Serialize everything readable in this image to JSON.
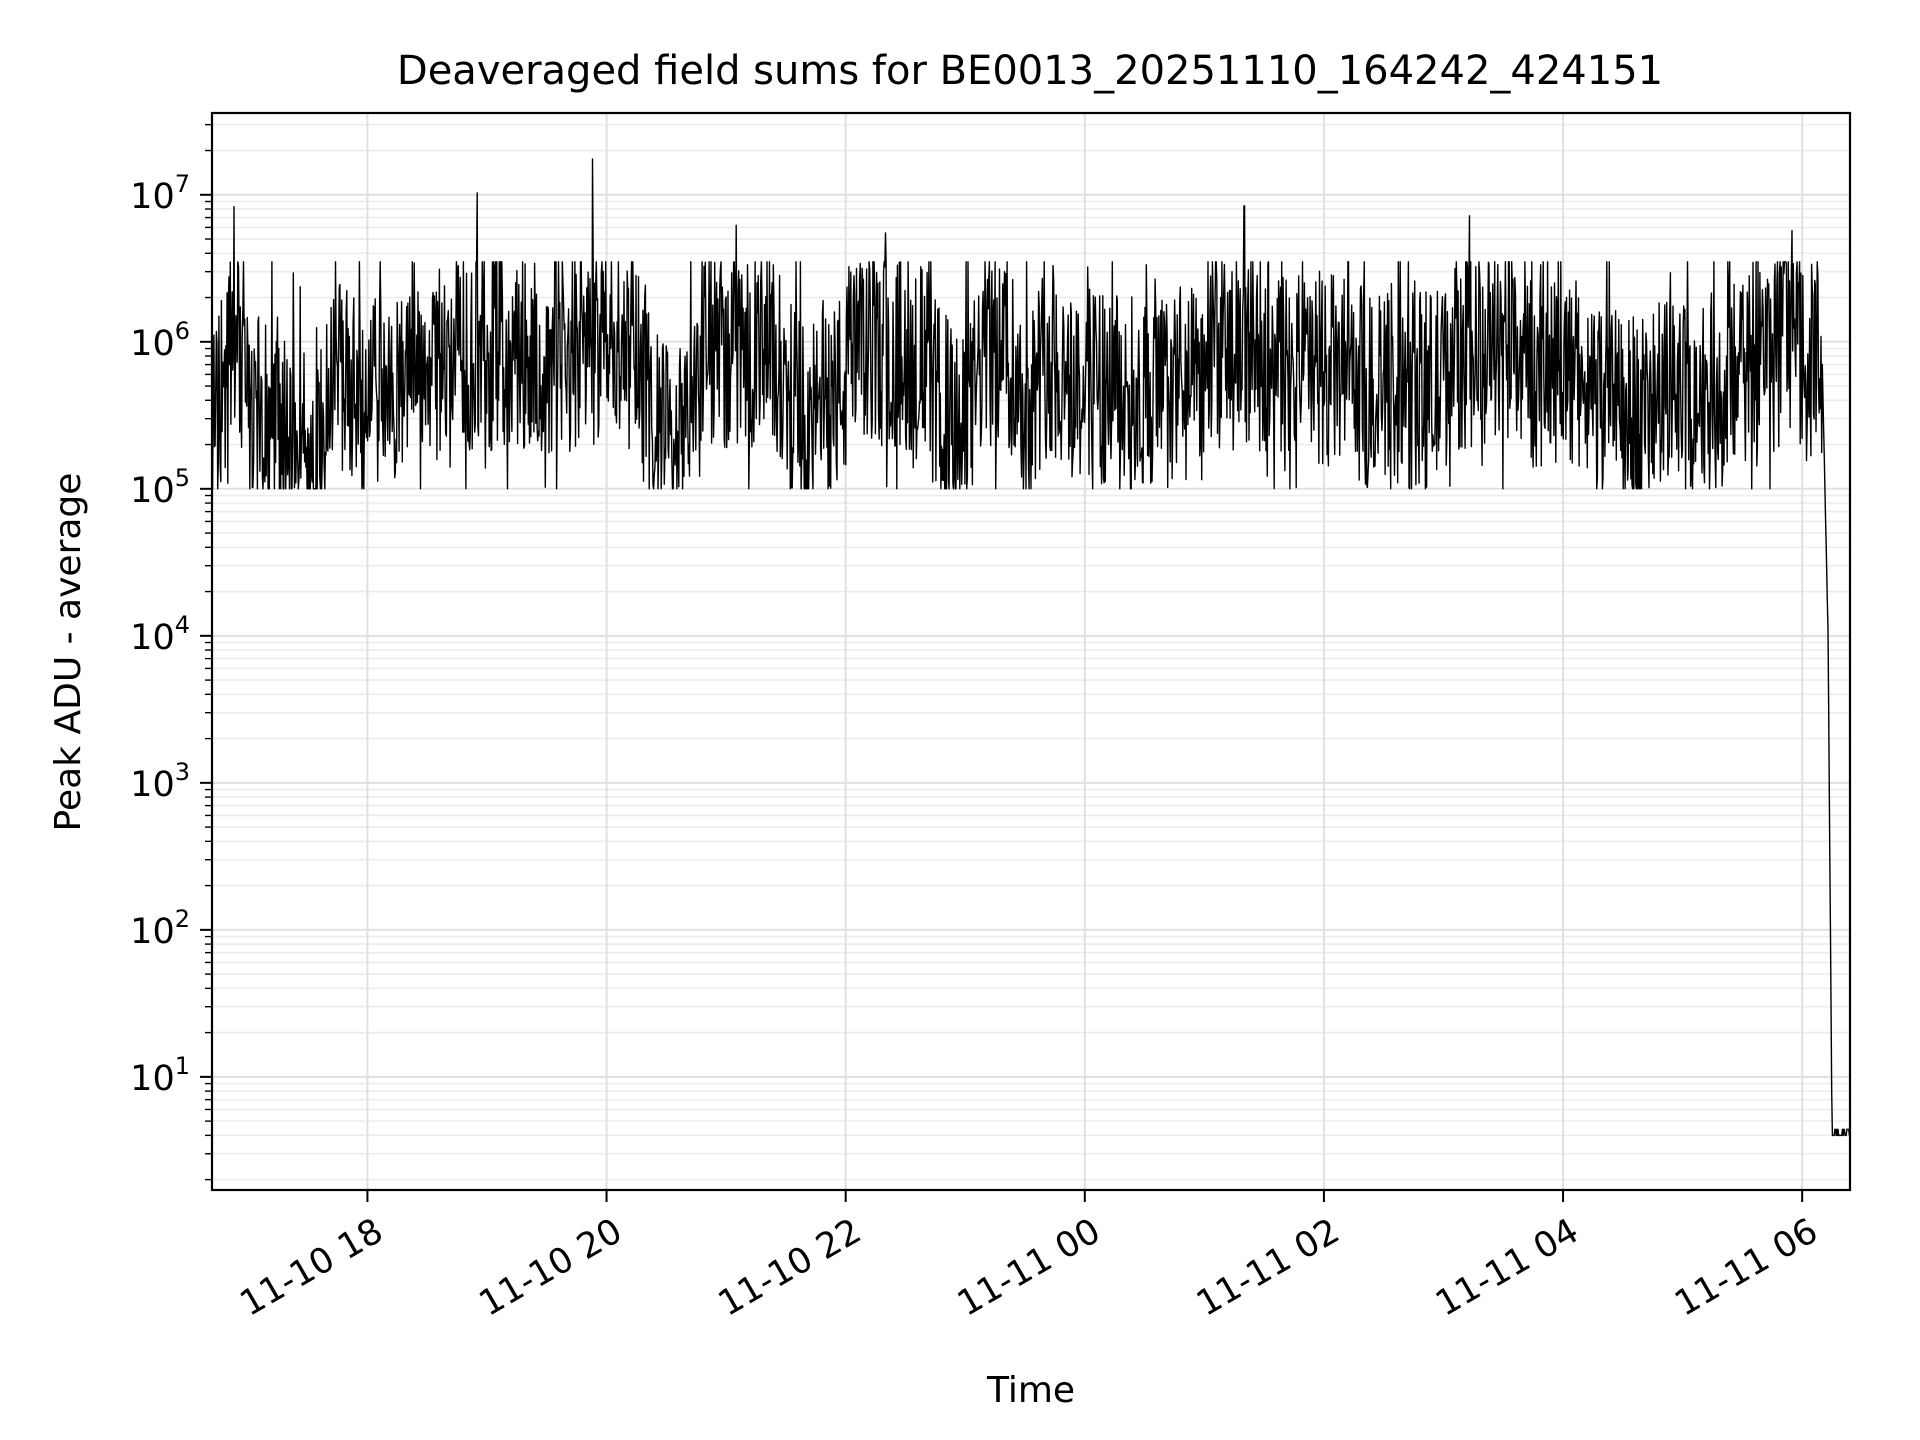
{
  "chart_data": {
    "type": "line",
    "title": "Deaveraged field sums for BE0013_20251110_164242_424151",
    "xlabel": "Time",
    "ylabel": "Peak ADU - average",
    "yscale": "log",
    "ylim": [
      1.7,
      36000000
    ],
    "xlim": [
      "2025-11-10 16:42",
      "2025-11-11 06:24"
    ],
    "grid": true,
    "line_color": "#000000",
    "x_ticks": [
      {
        "time": "2025-11-10 18:00",
        "label": "11-10 18"
      },
      {
        "time": "2025-11-10 20:00",
        "label": "11-10 20"
      },
      {
        "time": "2025-11-10 22:00",
        "label": "11-10 22"
      },
      {
        "time": "2025-11-11 00:00",
        "label": "11-11 00"
      },
      {
        "time": "2025-11-11 02:00",
        "label": "11-11 02"
      },
      {
        "time": "2025-11-11 04:00",
        "label": "11-11 04"
      },
      {
        "time": "2025-11-11 06:00",
        "label": "11-11 06"
      }
    ],
    "y_ticks": [
      {
        "value": 10,
        "base": "10",
        "exp": "1"
      },
      {
        "value": 100,
        "base": "10",
        "exp": "2"
      },
      {
        "value": 1000,
        "base": "10",
        "exp": "3"
      },
      {
        "value": 10000,
        "base": "10",
        "exp": "4"
      },
      {
        "value": 100000,
        "base": "10",
        "exp": "5"
      },
      {
        "value": 1000000,
        "base": "10",
        "exp": "6"
      },
      {
        "value": 10000000,
        "base": "10",
        "exp": "7"
      }
    ],
    "series_points": [
      [
        "2025-11-10 16:42",
        450000
      ],
      [
        "2025-11-10 16:50",
        600000
      ],
      [
        "2025-11-10 16:53",
        8300000
      ],
      [
        "2025-11-10 17:00",
        400000
      ],
      [
        "2025-11-10 17:20",
        300000
      ],
      [
        "2025-11-10 17:30",
        110000
      ],
      [
        "2025-11-10 17:45",
        700000
      ],
      [
        "2025-11-10 18:00",
        500000
      ],
      [
        "2025-11-10 18:30",
        900000
      ],
      [
        "2025-11-10 18:55",
        10300000
      ],
      [
        "2025-11-10 19:30",
        800000
      ],
      [
        "2025-11-10 19:53",
        17500000
      ],
      [
        "2025-11-10 20:20",
        500000
      ],
      [
        "2025-11-10 20:35",
        200000
      ],
      [
        "2025-11-10 21:00",
        2500000
      ],
      [
        "2025-11-10 21:05",
        6200000
      ],
      [
        "2025-11-10 21:20",
        1200000
      ],
      [
        "2025-11-10 21:40",
        300000
      ],
      [
        "2025-11-10 22:00",
        600000
      ],
      [
        "2025-11-10 22:20",
        5500000
      ],
      [
        "2025-11-10 22:45",
        500000
      ],
      [
        "2025-11-10 23:00",
        250000
      ],
      [
        "2025-11-10 23:15",
        2800000
      ],
      [
        "2025-11-10 23:30",
        400000
      ],
      [
        "2025-11-10 23:40",
        900000
      ],
      [
        "2025-11-11 00:00",
        600000
      ],
      [
        "2025-11-11 00:30",
        500000
      ],
      [
        "2025-11-11 01:00",
        600000
      ],
      [
        "2025-11-11 01:20",
        8400000
      ],
      [
        "2025-11-11 01:40",
        700000
      ],
      [
        "2025-11-11 02:00",
        800000
      ],
      [
        "2025-11-11 02:30",
        500000
      ],
      [
        "2025-11-11 03:00",
        600000
      ],
      [
        "2025-11-11 03:13",
        7200000
      ],
      [
        "2025-11-11 03:40",
        700000
      ],
      [
        "2025-11-11 04:00",
        800000
      ],
      [
        "2025-11-11 04:30",
        400000
      ],
      [
        "2025-11-11 05:00",
        500000
      ],
      [
        "2025-11-11 05:30",
        600000
      ],
      [
        "2025-11-11 05:55",
        5700000
      ],
      [
        "2025-11-11 06:00",
        700000
      ],
      [
        "2025-11-11 06:08",
        1000000
      ],
      [
        "2025-11-11 06:10",
        800000
      ],
      [
        "2025-11-11 06:13",
        10000
      ],
      [
        "2025-11-11 06:15",
        4
      ],
      [
        "2025-11-11 06:24",
        4
      ]
    ]
  }
}
